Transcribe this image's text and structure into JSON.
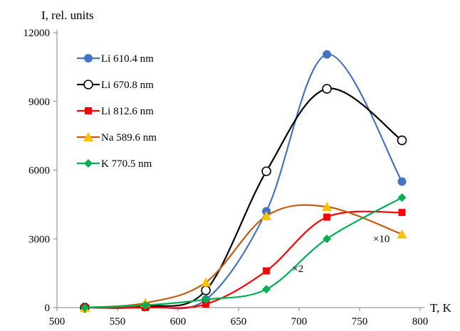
{
  "chart_data": {
    "type": "line",
    "ylabel": "I, rel. units",
    "xlabel": "T, K",
    "xlim": [
      500,
      800
    ],
    "ylim": [
      0,
      12000
    ],
    "x_ticks": [
      500,
      550,
      600,
      650,
      700,
      750,
      800
    ],
    "y_ticks": [
      0,
      3000,
      6000,
      9000,
      12000
    ],
    "grid": false,
    "legend_position": "top-left",
    "series": [
      {
        "name": "Li 610.4 nm",
        "color": "#4472c4",
        "marker": "circle-filled",
        "points": [
          [
            523,
            0
          ],
          [
            573,
            50
          ],
          [
            623,
            350
          ],
          [
            673,
            4200
          ],
          [
            723,
            11050
          ],
          [
            785,
            5500
          ]
        ]
      },
      {
        "name": "Li 670.8  nm",
        "color": "#000000",
        "marker": "circle-open",
        "points": [
          [
            523,
            0
          ],
          [
            573,
            50
          ],
          [
            623,
            750
          ],
          [
            673,
            5950
          ],
          [
            723,
            9550
          ],
          [
            785,
            7300
          ]
        ]
      },
      {
        "name": "Li 812.6 nm",
        "color": "#ff0000",
        "marker": "square",
        "points": [
          [
            523,
            0
          ],
          [
            573,
            0
          ],
          [
            623,
            150
          ],
          [
            673,
            1600
          ],
          [
            723,
            3950
          ],
          [
            785,
            4150
          ]
        ]
      },
      {
        "name": "Na 589.6 nm",
        "color": "#c55a11",
        "marker_color": "#ffc000",
        "marker": "triangle",
        "points": [
          [
            523,
            0
          ],
          [
            573,
            200
          ],
          [
            623,
            1100
          ],
          [
            673,
            4000
          ],
          [
            723,
            4400
          ],
          [
            785,
            3200
          ]
        ]
      },
      {
        "name": "K 770.5 nm",
        "color": "#00b050",
        "marker": "diamond",
        "points": [
          [
            523,
            0
          ],
          [
            573,
            100
          ],
          [
            623,
            350
          ],
          [
            673,
            800
          ],
          [
            723,
            3000
          ],
          [
            785,
            4800
          ]
        ]
      }
    ],
    "annotations": [
      {
        "text": "×10",
        "x": 768,
        "y": 2850
      },
      {
        "text": "×2",
        "x": 699,
        "y": 1550
      }
    ]
  }
}
